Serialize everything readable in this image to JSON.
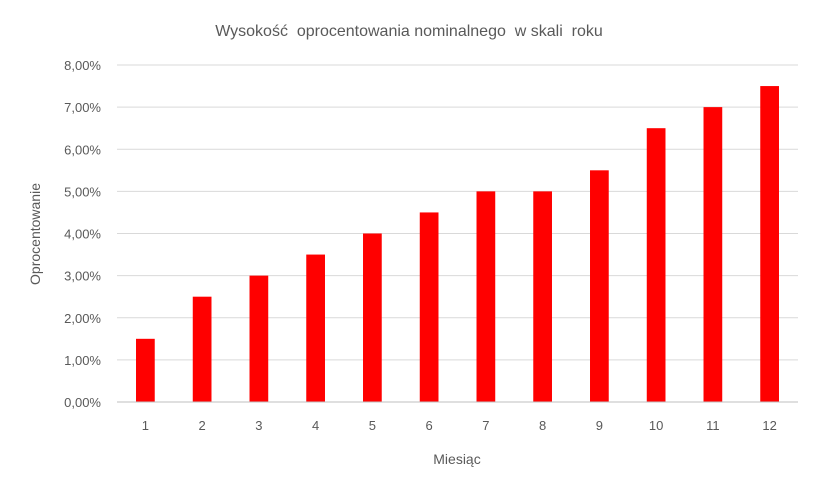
{
  "chart_data": {
    "type": "bar",
    "title": "Wysokość  oprocentowania nominalnego  w skali  roku",
    "xlabel": "Miesiąc",
    "ylabel": "Oprocentowanie",
    "categories": [
      "1",
      "2",
      "3",
      "4",
      "5",
      "6",
      "7",
      "8",
      "9",
      "10",
      "11",
      "12"
    ],
    "values": [
      1.5,
      2.5,
      3.0,
      3.5,
      4.0,
      4.5,
      5.0,
      5.0,
      5.5,
      6.5,
      7.0,
      7.5
    ],
    "ylim": [
      0,
      8
    ],
    "yticks": [
      "0,00%",
      "1,00%",
      "2,00%",
      "3,00%",
      "4,00%",
      "5,00%",
      "6,00%",
      "7,00%",
      "8,00%"
    ],
    "grid": true,
    "legend": "none",
    "bar_color": "#ff0000"
  }
}
